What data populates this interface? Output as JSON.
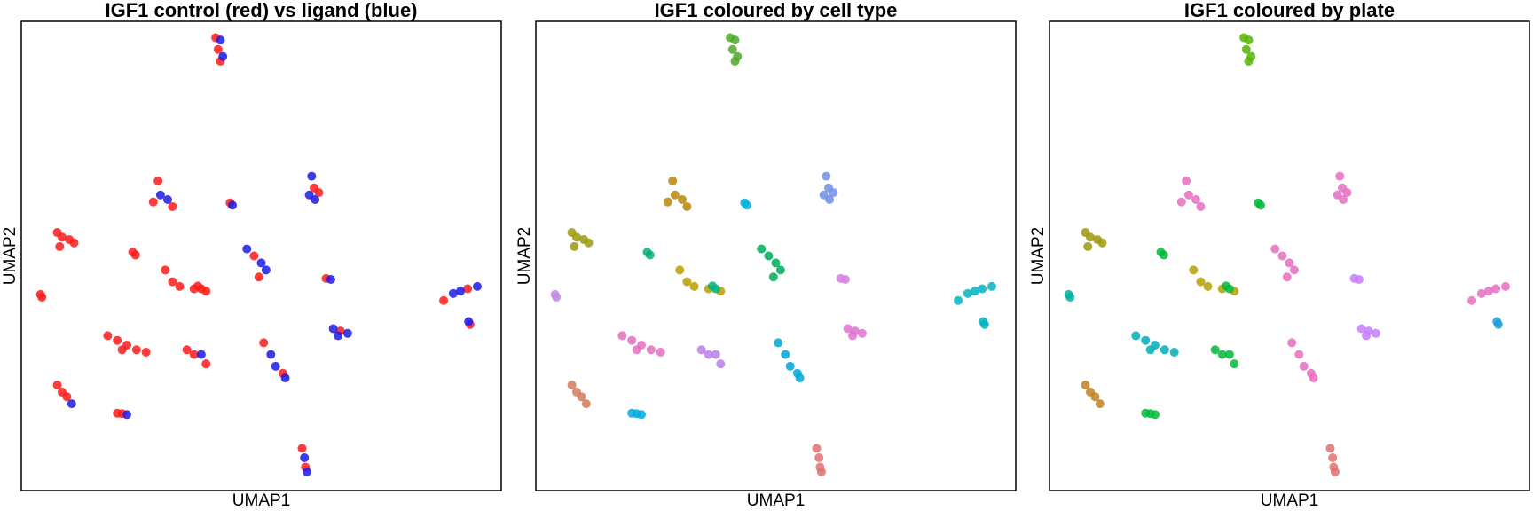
{
  "chart_data": [
    {
      "type": "scatter",
      "title": "IGF1 control (red) vs ligand (blue)",
      "xlabel": "UMAP1",
      "ylabel": "UMAP2",
      "xlim": [
        0,
        100
      ],
      "ylim": [
        0,
        100
      ],
      "series": [
        {
          "color": "#ff1a1a",
          "x": [
            40.5,
            41,
            41.5,
            28.5,
            27.5,
            31.5,
            43.5,
            61,
            62,
            7.5,
            8.5,
            10,
            11,
            8,
            23.2,
            23.8,
            30,
            31.5,
            33,
            36,
            38.5,
            48.5,
            49.5,
            63.5,
            4,
            4.3,
            88,
            93,
            93.5,
            18,
            20,
            22,
            24,
            26,
            21,
            34.5,
            36,
            38.5,
            50.5,
            54.5,
            66.5,
            7.5,
            8.5,
            9.5,
            20,
            21,
            58.5,
            59.2,
            36.8,
            37.5
          ],
          "y": [
            96.5,
            94,
            91.5,
            66,
            61.5,
            60.5,
            61.3,
            64.5,
            63.5,
            55,
            54,
            53.5,
            52.8,
            52,
            50.8,
            50.2,
            47,
            44.5,
            43.5,
            43,
            42.5,
            50,
            45.5,
            45.2,
            41.8,
            41.2,
            40.5,
            43,
            35.4,
            33,
            32,
            31,
            30,
            29.5,
            30,
            30,
            29,
            27,
            31.5,
            25,
            34,
            22.5,
            21,
            20,
            16.5,
            16.4,
            9,
            5,
            43.6,
            43
          ]
        },
        {
          "color": "#1a1ae6",
          "x": [
            41.5,
            42,
            29,
            30.5,
            44,
            60.5,
            60,
            61.2,
            47,
            50,
            51,
            64.5,
            90,
            91.5,
            95,
            93.2,
            37.5,
            52,
            53,
            55,
            65,
            68,
            66,
            10.5,
            22,
            59,
            59.5
          ],
          "y": [
            96,
            92.5,
            63,
            62,
            60.8,
            67,
            63,
            62,
            51.5,
            48.5,
            47,
            45,
            42,
            42.5,
            43.5,
            36,
            29,
            29,
            26.5,
            24,
            34.5,
            33.5,
            33,
            18.5,
            16.2,
            7,
            4
          ]
        }
      ]
    },
    {
      "type": "scatter",
      "title": "IGF1 coloured by cell type",
      "xlabel": "UMAP1",
      "ylabel": "UMAP2",
      "xlim": [
        0,
        100
      ],
      "ylim": [
        0,
        100
      ],
      "series": [
        {
          "color": "#4fa82a",
          "x": [
            40.5,
            41.5,
            41,
            42,
            41.5
          ],
          "y": [
            96.5,
            96,
            94,
            92.5,
            91.5
          ]
        },
        {
          "color": "#b8860b",
          "x": [
            28.5,
            29,
            27.5,
            30.5,
            31.5
          ],
          "y": [
            66,
            63,
            61.5,
            62,
            60.5
          ]
        },
        {
          "color": "#00b0e0",
          "x": [
            43.5,
            44
          ],
          "y": [
            61.3,
            60.8
          ]
        },
        {
          "color": "#6f8fe8",
          "x": [
            60.5,
            61,
            60,
            62,
            61.2
          ],
          "y": [
            67,
            64.5,
            63,
            63.5,
            62
          ]
        },
        {
          "color": "#9a9a0a",
          "x": [
            7.5,
            8.5,
            10,
            11,
            8
          ],
          "y": [
            55,
            54,
            53.5,
            52.8,
            52
          ]
        },
        {
          "color": "#00b07a",
          "x": [
            23.2,
            23.8
          ],
          "y": [
            50.8,
            50.2
          ]
        },
        {
          "color": "#b79f00",
          "x": [
            30,
            31.5,
            33,
            36,
            38.5
          ],
          "y": [
            47,
            44.5,
            43.5,
            43,
            42.5
          ]
        },
        {
          "color": "#00aa5c",
          "x": [
            47,
            48.5,
            50,
            51,
            49.5
          ],
          "y": [
            51.5,
            50,
            48.5,
            47,
            45.5
          ]
        },
        {
          "color": "#d57fe0",
          "x": [
            63.5,
            64.5
          ],
          "y": [
            45.2,
            45
          ]
        },
        {
          "color": "#c08be8",
          "x": [
            4,
            4.3
          ],
          "y": [
            41.8,
            41.2
          ]
        },
        {
          "color": "#00b2c4",
          "x": [
            88,
            90,
            91.5,
            93,
            95
          ],
          "y": [
            40.5,
            42,
            42.5,
            43,
            43.5
          ]
        },
        {
          "color": "#00b0c0",
          "x": [
            93.2,
            93.5
          ],
          "y": [
            36,
            35.4
          ]
        },
        {
          "color": "#e46fc0",
          "x": [
            18,
            20,
            22,
            24,
            26,
            21
          ],
          "y": [
            33,
            32,
            31,
            30,
            29.5,
            30
          ]
        },
        {
          "color": "#b880e8",
          "x": [
            34.5,
            36,
            37.5,
            38.5
          ],
          "y": [
            30,
            29,
            29,
            27
          ]
        },
        {
          "color": "#00a6d6",
          "x": [
            50.5,
            52,
            53,
            54.5,
            55
          ],
          "y": [
            31.5,
            29,
            26.5,
            25,
            24
          ]
        },
        {
          "color": "#e070d0",
          "x": [
            65,
            66.5,
            68,
            66
          ],
          "y": [
            34.5,
            34,
            33.5,
            33
          ]
        },
        {
          "color": "#d27a5a",
          "x": [
            7.5,
            8.5,
            9.5,
            10.5
          ],
          "y": [
            22.5,
            21,
            20,
            18.5
          ]
        },
        {
          "color": "#00a9e0",
          "x": [
            20,
            21,
            22
          ],
          "y": [
            16.5,
            16.4,
            16.2
          ]
        },
        {
          "color": "#e07070",
          "x": [
            58.5,
            59,
            59.2,
            59.5
          ],
          "y": [
            9,
            7,
            5,
            4
          ]
        },
        {
          "color": "#00b27f",
          "x": [
            36.8,
            37.5
          ],
          "y": [
            43.6,
            43
          ]
        }
      ]
    },
    {
      "type": "scatter",
      "title": "IGF1 coloured by plate",
      "xlabel": "UMAP1",
      "ylabel": "UMAP2",
      "xlim": [
        0,
        100
      ],
      "ylim": [
        0,
        100
      ],
      "series": [
        {
          "color": "#53b400",
          "x": [
            40.5,
            41.5,
            41,
            42,
            41.5
          ],
          "y": [
            96.5,
            96,
            94,
            92.5,
            91.5
          ]
        },
        {
          "color": "#e56fc2",
          "x": [
            28.5,
            29,
            27.5,
            30.5,
            31.5
          ],
          "y": [
            66,
            63,
            61.5,
            62,
            60.5
          ]
        },
        {
          "color": "#00ba38",
          "x": [
            43.5,
            44
          ],
          "y": [
            61.3,
            60.8
          ]
        },
        {
          "color": "#e56fc2",
          "x": [
            60.5,
            61,
            60,
            62,
            61.2
          ],
          "y": [
            67,
            64.5,
            63,
            63.5,
            62
          ]
        },
        {
          "color": "#9a9a0a",
          "x": [
            7.5,
            8.5,
            10,
            11,
            8
          ],
          "y": [
            55,
            54,
            53.5,
            52.8,
            52
          ]
        },
        {
          "color": "#00ba38",
          "x": [
            23.2,
            23.8
          ],
          "y": [
            50.8,
            50.2
          ]
        },
        {
          "color": "#b79f00",
          "x": [
            30,
            31.5,
            33,
            36,
            38.5
          ],
          "y": [
            47,
            44.5,
            43.5,
            43,
            42.5
          ]
        },
        {
          "color": "#e56fc2",
          "x": [
            47,
            48.5,
            50,
            51,
            49.5
          ],
          "y": [
            51.5,
            50,
            48.5,
            47,
            45.5
          ]
        },
        {
          "color": "#c77cff",
          "x": [
            63.5,
            64.5
          ],
          "y": [
            45.2,
            45
          ]
        },
        {
          "color": "#00b0a0",
          "x": [
            4,
            4.3
          ],
          "y": [
            41.8,
            41.2
          ]
        },
        {
          "color": "#e56fc2",
          "x": [
            88,
            90,
            91.5,
            93,
            95
          ],
          "y": [
            40.5,
            42,
            42.5,
            43,
            43.5
          ]
        },
        {
          "color": "#1f9bd8",
          "x": [
            93.2,
            93.5
          ],
          "y": [
            36,
            35.4
          ]
        },
        {
          "color": "#00abb8",
          "x": [
            18,
            20,
            22,
            24,
            26,
            21
          ],
          "y": [
            33,
            32,
            31,
            30,
            29.5,
            30
          ]
        },
        {
          "color": "#00ba38",
          "x": [
            34.5,
            36,
            37.5,
            38.5
          ],
          "y": [
            30,
            29,
            29,
            27
          ]
        },
        {
          "color": "#e56fc2",
          "x": [
            50.5,
            52,
            53,
            54.5,
            55
          ],
          "y": [
            31.5,
            29,
            26.5,
            25,
            24
          ]
        },
        {
          "color": "#c77cff",
          "x": [
            65,
            66.5,
            68,
            66
          ],
          "y": [
            34.5,
            34,
            33.5,
            33
          ]
        },
        {
          "color": "#c08020",
          "x": [
            7.5,
            8.5,
            9.5,
            10.5
          ],
          "y": [
            22.5,
            21,
            20,
            18.5
          ]
        },
        {
          "color": "#00ba38",
          "x": [
            20,
            21,
            22
          ],
          "y": [
            16.5,
            16.4,
            16.2
          ]
        },
        {
          "color": "#e07070",
          "x": [
            58.5,
            59,
            59.2,
            59.5
          ],
          "y": [
            9,
            7,
            5,
            4
          ]
        },
        {
          "color": "#00ba38",
          "x": [
            36.8,
            37.5
          ],
          "y": [
            43.6,
            43
          ]
        }
      ]
    }
  ]
}
